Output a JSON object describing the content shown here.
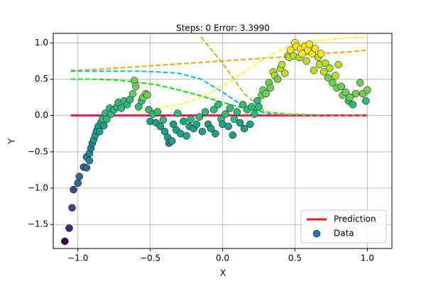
{
  "chart_data": {
    "type": "line",
    "title": "Steps: 0 Error: 3.3990",
    "xlabel": "X",
    "ylabel": "Y",
    "x": [
      -1.05,
      -0.9,
      -0.75,
      -0.6,
      -0.45,
      -0.3,
      -0.15,
      0,
      0.15,
      0.3,
      0.45,
      0.6,
      0.75,
      0.9,
      1.0
    ],
    "series": [
      {
        "name": "Prediction",
        "color": "#e41a1c",
        "style": "solid",
        "values": [
          0,
          0,
          0,
          0,
          0,
          0,
          0,
          0,
          0,
          0,
          0,
          0,
          0,
          0,
          0
        ]
      },
      {
        "color": "#ffa500",
        "style": "dashed",
        "values": [
          0.62,
          0.63,
          0.65,
          0.67,
          0.69,
          0.71,
          0.73,
          0.75,
          0.77,
          0.79,
          0.81,
          0.84,
          0.86,
          0.88,
          0.9
        ]
      },
      {
        "color": "#00bfff",
        "style": "dashed",
        "values": [
          0.61,
          0.61,
          0.61,
          0.61,
          0.6,
          0.58,
          0.5,
          0.32,
          0.12,
          0.03,
          0.01,
          0,
          0,
          0,
          0
        ]
      },
      {
        "color": "#00ee00",
        "style": "dashed",
        "values": [
          0.5,
          0.5,
          0.49,
          0.46,
          0.42,
          0.35,
          0.27,
          0.18,
          0.1,
          0.05,
          0.02,
          0.01,
          0,
          0,
          0
        ]
      },
      {
        "color": "#ffff33",
        "style": "dashed",
        "values": [
          null,
          null,
          null,
          0.05,
          0.1,
          0.15,
          0.25,
          0.4,
          0.6,
          0.8,
          0.95,
          1.02,
          1.05,
          1.07,
          1.08
        ]
      },
      {
        "color": "#bcbd22",
        "style": "dashed",
        "values": [
          null,
          null,
          null,
          null,
          null,
          null,
          1.08,
          0.72,
          0.3,
          0.05,
          0.01,
          0,
          0,
          0,
          0
        ]
      },
      {
        "color": "#ff1493",
        "style": "dashed",
        "values": [
          0,
          0,
          0,
          0,
          0,
          0,
          0,
          0,
          0,
          0,
          0,
          0,
          0,
          0,
          0
        ]
      }
    ],
    "scatter": {
      "name": "Data",
      "color": "#1f77b4",
      "colormap": "viridis",
      "x": [
        -1.09,
        -1.06,
        -1.04,
        -1.03,
        -1.0,
        -0.99,
        -0.96,
        -0.94,
        -0.94,
        -0.92,
        -0.92,
        -0.91,
        -0.9,
        -0.89,
        -0.88,
        -0.87,
        -0.86,
        -0.85,
        -0.84,
        -0.83,
        -0.82,
        -0.81,
        -0.8,
        -0.78,
        -0.77,
        -0.75,
        -0.73,
        -0.72,
        -0.7,
        -0.68,
        -0.66,
        -0.64,
        -0.62,
        -0.61,
        -0.6,
        -0.58,
        -0.56,
        -0.55,
        -0.53,
        -0.52,
        -0.51,
        -0.5,
        -0.48,
        -0.46,
        -0.45,
        -0.43,
        -0.41,
        -0.4,
        -0.38,
        -0.37,
        -0.35,
        -0.34,
        -0.32,
        -0.31,
        -0.29,
        -0.27,
        -0.25,
        -0.23,
        -0.22,
        -0.2,
        -0.18,
        -0.16,
        -0.14,
        -0.12,
        -0.1,
        -0.08,
        -0.06,
        -0.05,
        -0.03,
        -0.01,
        0.0,
        0.02,
        0.04,
        0.05,
        0.07,
        0.08,
        0.1,
        0.12,
        0.14,
        0.15,
        0.17,
        0.19,
        0.2,
        0.22,
        0.24,
        0.25,
        0.27,
        0.28,
        0.3,
        0.32,
        0.33,
        0.35,
        0.36,
        0.38,
        0.4,
        0.41,
        0.43,
        0.45,
        0.46,
        0.47,
        0.49,
        0.5,
        0.51,
        0.53,
        0.54,
        0.55,
        0.57,
        0.58,
        0.59,
        0.6,
        0.62,
        0.63,
        0.64,
        0.66,
        0.67,
        0.68,
        0.7,
        0.71,
        0.73,
        0.74,
        0.76,
        0.78,
        0.79,
        0.8,
        0.82,
        0.83,
        0.85,
        0.87,
        0.88,
        0.9,
        0.92,
        0.95,
        0.97,
        0.99,
        1.0
      ],
      "y": [
        -1.73,
        -1.55,
        -1.27,
        -1.02,
        -0.93,
        -0.84,
        -0.71,
        -0.72,
        -0.57,
        -0.52,
        -0.62,
        -0.45,
        -0.38,
        -0.33,
        -0.27,
        -0.21,
        -0.15,
        -0.22,
        -0.1,
        -0.05,
        -0.14,
        0.03,
        -0.05,
        0.1,
        0.02,
        0.08,
        0.12,
        0.18,
        0.1,
        0.2,
        0.15,
        0.22,
        0.3,
        0.48,
        0.4,
        0.12,
        0.2,
        0.25,
        0.3,
        0.28,
        0.08,
        -0.08,
        0.02,
        -0.1,
        0.05,
        -0.15,
        -0.06,
        -0.22,
        -0.3,
        -0.38,
        -0.35,
        -0.12,
        -0.2,
        0.03,
        -0.25,
        -0.08,
        -0.28,
        -0.15,
        -0.05,
        -0.18,
        -0.12,
        -0.02,
        -0.22,
        0.05,
        -0.12,
        -0.18,
        0.08,
        -0.25,
        0.15,
        -0.05,
        -0.12,
        0.02,
        -0.15,
        0.1,
        -0.27,
        -0.05,
        0.05,
        -0.1,
        0.15,
        -0.18,
        0.08,
        -0.12,
        0.12,
        0.02,
        0.2,
        0.12,
        0.28,
        0.35,
        0.3,
        0.45,
        0.38,
        0.6,
        0.55,
        0.5,
        0.65,
        0.7,
        0.58,
        0.82,
        0.8,
        0.9,
        0.82,
        1.0,
        0.95,
        0.8,
        0.92,
        0.85,
        0.95,
        0.75,
        0.9,
        0.98,
        0.85,
        0.62,
        0.92,
        0.8,
        0.7,
        0.85,
        0.6,
        0.72,
        0.52,
        0.65,
        0.45,
        0.55,
        0.38,
        0.7,
        0.4,
        0.28,
        0.32,
        0.2,
        0.25,
        0.15,
        0.3,
        0.45,
        0.3,
        0.2,
        0.35
      ]
    },
    "xlim": [
      -1.17,
      1.17
    ],
    "ylim": [
      -1.83,
      1.13
    ],
    "xticks": [
      {
        "value": -1.0,
        "label": "−1.0"
      },
      {
        "value": -0.5,
        "label": "−0.5"
      },
      {
        "value": 0.0,
        "label": "0.0"
      },
      {
        "value": 0.5,
        "label": "0.5"
      },
      {
        "value": 1.0,
        "label": "1.0"
      }
    ],
    "yticks": [
      {
        "value": -1.5,
        "label": "−1.5"
      },
      {
        "value": -1.0,
        "label": "−1.0"
      },
      {
        "value": -0.5,
        "label": "−0.5"
      },
      {
        "value": 0.0,
        "label": "0.0"
      },
      {
        "value": 0.5,
        "label": "0.5"
      },
      {
        "value": 1.0,
        "label": "1.0"
      }
    ],
    "grid": true,
    "legend": "lower right"
  }
}
